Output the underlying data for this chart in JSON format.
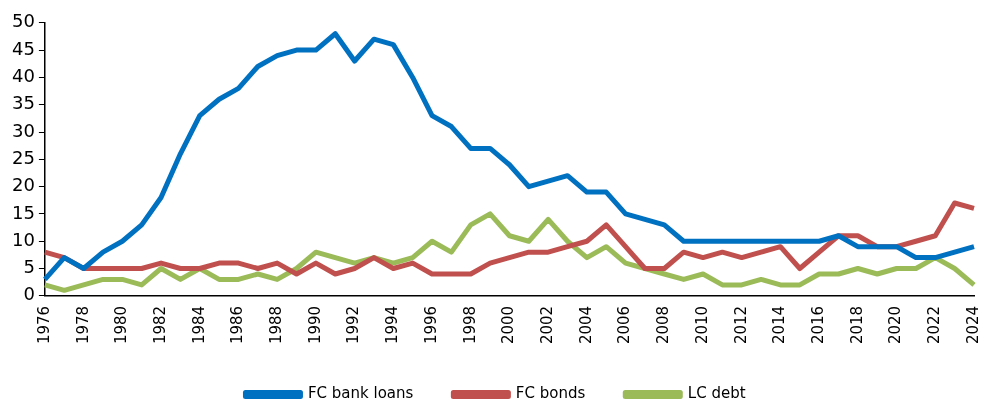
{
  "chart_data": {
    "type": "line",
    "categories": [
      "1976",
      null,
      "1978",
      null,
      "1980",
      null,
      "1982",
      null,
      "1984",
      null,
      "1986",
      null,
      "1988",
      null,
      "1990",
      null,
      "1992",
      null,
      "1994",
      null,
      "1996",
      null,
      "1998",
      null,
      "2000",
      null,
      "2002",
      null,
      "2004",
      null,
      "2006",
      null,
      "2008",
      null,
      "2010",
      null,
      "2012",
      null,
      "2014",
      null,
      "2016",
      null,
      "2018",
      null,
      "2020",
      null,
      "2022",
      null,
      "2024"
    ],
    "series": [
      {
        "name": "FC bank loans",
        "color": "#0070c0",
        "values": [
          3,
          7,
          5,
          8,
          10,
          13,
          18,
          26,
          33,
          36,
          38,
          42,
          44,
          45,
          45,
          48,
          43,
          47,
          46,
          40,
          33,
          31,
          27,
          27,
          24,
          20,
          21,
          22,
          19,
          19,
          15,
          14,
          13,
          10,
          10,
          10,
          10,
          10,
          10,
          10,
          10,
          11,
          9,
          9,
          9,
          7,
          7,
          8,
          9
        ]
      },
      {
        "name": "FC bonds",
        "color": "#c0504d",
        "values": [
          8,
          7,
          5,
          5,
          5,
          5,
          6,
          5,
          5,
          6,
          6,
          5,
          6,
          4,
          6,
          4,
          5,
          7,
          5,
          6,
          4,
          4,
          4,
          6,
          7,
          8,
          8,
          9,
          10,
          13,
          9,
          5,
          5,
          8,
          7,
          8,
          7,
          8,
          9,
          5,
          8,
          11,
          11,
          9,
          9,
          10,
          11,
          17,
          16
        ]
      },
      {
        "name": "LC debt",
        "color": "#9bbb59",
        "values": [
          2,
          1,
          2,
          3,
          3,
          2,
          5,
          3,
          5,
          3,
          3,
          4,
          3,
          5,
          8,
          7,
          6,
          7,
          6,
          7,
          10,
          8,
          13,
          15,
          11,
          10,
          14,
          10,
          7,
          9,
          6,
          5,
          4,
          3,
          4,
          2,
          2,
          3,
          2,
          2,
          4,
          4,
          5,
          4,
          5,
          5,
          7,
          5,
          2
        ]
      }
    ],
    "ylim": [
      0,
      50
    ],
    "yticks": [
      0,
      5,
      10,
      15,
      20,
      25,
      30,
      35,
      40,
      45,
      50
    ],
    "grid": false,
    "legend": "bottom",
    "marker": "none",
    "line_style": "solid"
  }
}
